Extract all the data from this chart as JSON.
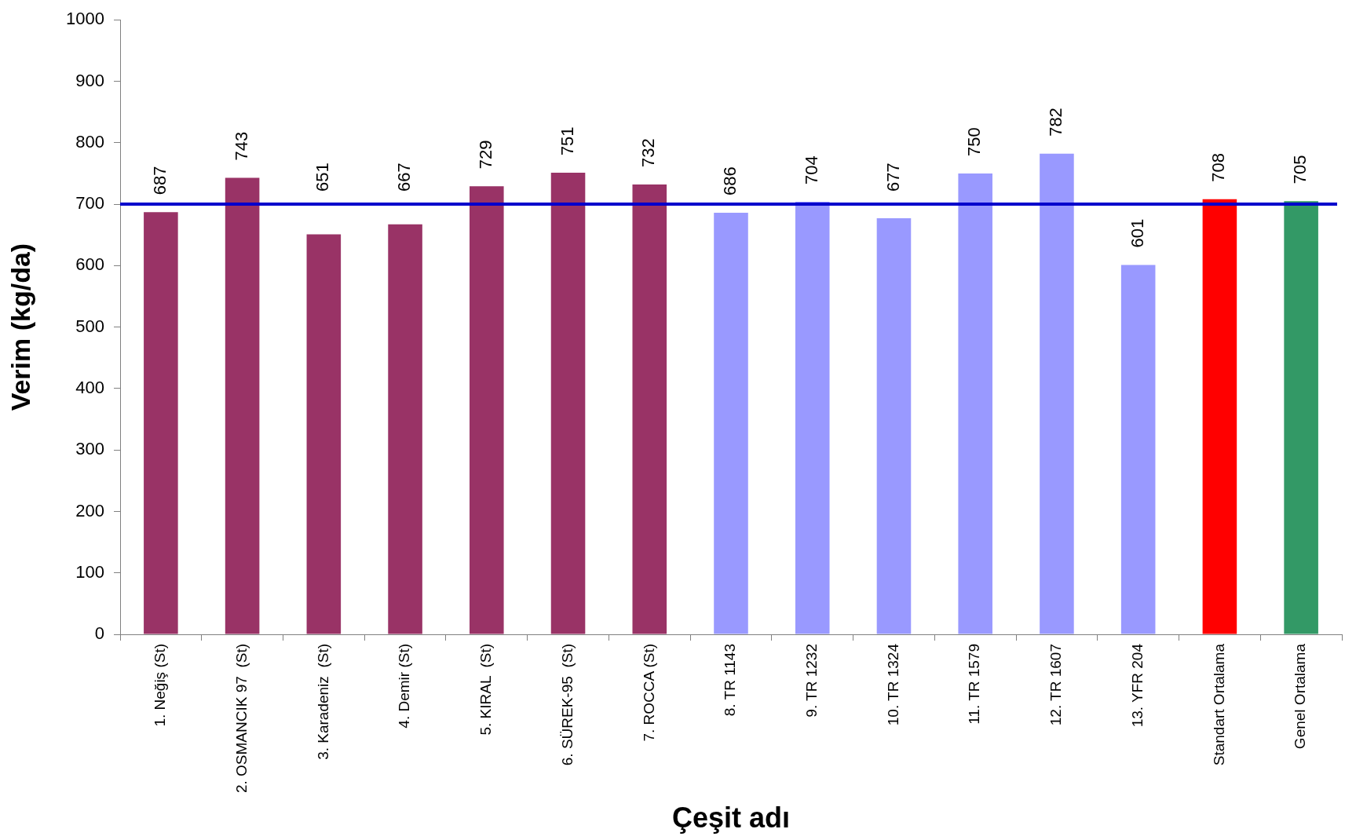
{
  "chart_data": {
    "type": "bar",
    "xlabel": "Çeşit adı",
    "ylabel": "Verim (kg/da)",
    "categories": [
      "1. Neğiş (St)",
      "2. OSMANCIK 97  (St)",
      "3. Karadeniz  (St)",
      "4. Demir (St)",
      "5. KIRAL  (St)",
      "6. SÜREK-95  (St)",
      "7. ROCCA (St)",
      "8. TR 1143",
      "9. TR 1232",
      "10. TR 1324",
      "11. TR 1579",
      "12. TR 1607",
      "13. YFR 204",
      "Standart Ortalama",
      "Genel Ortalama"
    ],
    "values": [
      687,
      743,
      651,
      667,
      729,
      751,
      732,
      686,
      704,
      677,
      750,
      782,
      601,
      708,
      705
    ],
    "colors": [
      "#993366",
      "#993366",
      "#993366",
      "#993366",
      "#993366",
      "#993366",
      "#993366",
      "#9999ff",
      "#9999ff",
      "#9999ff",
      "#9999ff",
      "#9999ff",
      "#9999ff",
      "#ff0000",
      "#339966"
    ],
    "ylim": [
      0,
      1000
    ],
    "yticks": [
      0,
      100,
      200,
      300,
      400,
      500,
      600,
      700,
      800,
      900,
      1000
    ],
    "data_labels": true,
    "ref_lines": [
      {
        "axis": "y",
        "value": 700,
        "color": "#0000cc"
      }
    ]
  }
}
